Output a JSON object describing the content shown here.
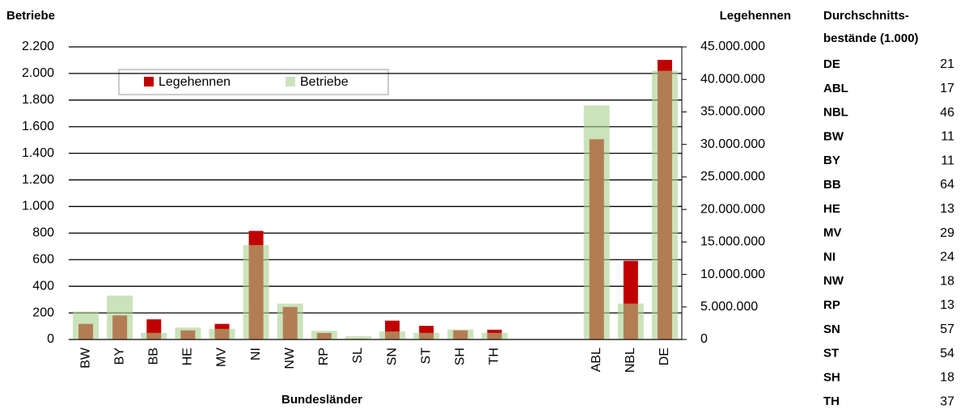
{
  "chart_data": {
    "type": "bar",
    "y_axis_label": "Betriebe",
    "y2_axis_label": "Legehennen",
    "x_axis_label": "Bundesländer",
    "categories": [
      "BW",
      "BY",
      "BB",
      "HE",
      "MV",
      "NI",
      "NW",
      "RP",
      "SL",
      "SN",
      "ST",
      "SH",
      "TH",
      null,
      null,
      "ABL",
      "NBL",
      "DE"
    ],
    "series": [
      {
        "name": "Legehennen",
        "color": "#c00000",
        "axis": "y2",
        "values": [
          2400000,
          3700000,
          3100000,
          1400000,
          2400000,
          16700000,
          5000000,
          1000000,
          100000,
          2900000,
          2100000,
          1400000,
          1500000,
          null,
          null,
          30800000,
          12100000,
          43000000
        ]
      },
      {
        "name": "Betriebe",
        "color": "#a9d18e",
        "axis": "y",
        "values": [
          210,
          330,
          50,
          90,
          80,
          710,
          270,
          65,
          25,
          60,
          50,
          75,
          50,
          null,
          null,
          1760,
          270,
          2020
        ]
      }
    ],
    "ylim": [
      0,
      2200
    ],
    "yticks": [
      0,
      {
        "value": 200,
        "label": "200"
      },
      400,
      600,
      800,
      {
        "value": 1000,
        "label": "1.000"
      },
      {
        "value": 1200,
        "label": "1.200"
      },
      {
        "value": 1400,
        "label": "1.400"
      },
      {
        "value": 1600,
        "label": "1.600"
      },
      {
        "value": 1800,
        "label": "1.800"
      },
      {
        "value": 2000,
        "label": "2.000"
      },
      {
        "value": 2200,
        "label": "2.200"
      }
    ],
    "y2lim": [
      0,
      45000000
    ],
    "y2ticks": [
      0,
      {
        "value": 5000000,
        "label": "5.000.000"
      },
      {
        "value": 10000000,
        "label": "10.000.000"
      },
      {
        "value": 15000000,
        "label": "15.000.000"
      },
      {
        "value": 20000000,
        "label": "20.000.000"
      },
      {
        "value": 25000000,
        "label": "25.000.000"
      },
      {
        "value": 30000000,
        "label": "30.000.000"
      },
      {
        "value": 35000000,
        "label": "35.000.000"
      },
      {
        "value": 40000000,
        "label": "40.000.000"
      },
      {
        "value": 45000000,
        "label": "45.000.000"
      }
    ],
    "grid": true,
    "legend": "top-left"
  },
  "table": {
    "header": [
      "Durchschnitts-",
      "bestände (1.000)"
    ],
    "rows": [
      [
        "DE",
        21
      ],
      [
        "ABL",
        17
      ],
      [
        "NBL",
        46
      ],
      [
        "BW",
        11
      ],
      [
        "BY",
        11
      ],
      [
        "BB",
        64
      ],
      [
        "HE",
        13
      ],
      [
        "MV",
        29
      ],
      [
        "NI",
        24
      ],
      [
        "NW",
        18
      ],
      [
        "RP",
        13
      ],
      [
        "SN",
        57
      ],
      [
        "ST",
        54
      ],
      [
        "SH",
        18
      ],
      [
        "TH",
        37
      ]
    ]
  }
}
